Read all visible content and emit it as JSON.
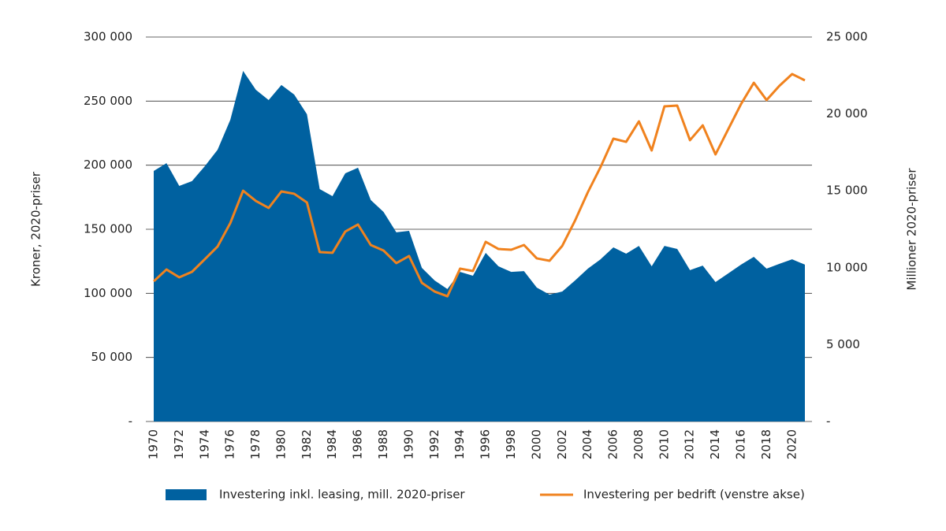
{
  "chart_data": {
    "type": "area",
    "ylabel": "Kroner, 2020-priser",
    "y2label": "Millioner 2020-priser",
    "x": [
      1970,
      1971,
      1972,
      1973,
      1974,
      1975,
      1976,
      1977,
      1978,
      1979,
      1980,
      1981,
      1982,
      1983,
      1984,
      1985,
      1986,
      1987,
      1988,
      1989,
      1990,
      1991,
      1992,
      1993,
      1994,
      1995,
      1996,
      1997,
      1998,
      1999,
      2000,
      2001,
      2002,
      2003,
      2004,
      2005,
      2006,
      2007,
      2008,
      2009,
      2010,
      2011,
      2012,
      2013,
      2014,
      2015,
      2016,
      2017,
      2018,
      2019,
      2020,
      2021
    ],
    "xlim": [
      1970,
      2021
    ],
    "xticks": [
      1970,
      1972,
      1974,
      1976,
      1978,
      1980,
      1982,
      1984,
      1986,
      1988,
      1990,
      1992,
      1994,
      1996,
      1998,
      2000,
      2002,
      2004,
      2006,
      2008,
      2010,
      2012,
      2014,
      2016,
      2018,
      2020
    ],
    "ylim": [
      0,
      300000
    ],
    "yticks": [
      {
        "value": 0,
        "label": "-"
      },
      {
        "value": 50000,
        "label": "50 000"
      },
      {
        "value": 100000,
        "label": "100 000"
      },
      {
        "value": 150000,
        "label": "150 000"
      },
      {
        "value": 200000,
        "label": "200 000"
      },
      {
        "value": 250000,
        "label": "250 000"
      },
      {
        "value": 300000,
        "label": "300 000"
      }
    ],
    "y2lim": [
      0,
      25000
    ],
    "y2ticks": [
      {
        "value": 0,
        "label": "-"
      },
      {
        "value": 5000,
        "label": "5 000"
      },
      {
        "value": 10000,
        "label": "10 000"
      },
      {
        "value": 15000,
        "label": "15 000"
      },
      {
        "value": 20000,
        "label": "20 000"
      },
      {
        "value": 25000,
        "label": "25 000"
      }
    ],
    "grid": true,
    "legend": "bottom",
    "series": [
      {
        "name": "Investering inkl. leasing, mill. 2020-priser",
        "type": "area",
        "axis": "y2",
        "color": "#0061a0",
        "values": [
          16290,
          16800,
          15320,
          15630,
          16600,
          17670,
          19620,
          22800,
          21570,
          20900,
          21880,
          21260,
          19980,
          15110,
          14650,
          16140,
          16500,
          14400,
          13630,
          12300,
          12400,
          9990,
          9170,
          8610,
          9730,
          9480,
          10960,
          10090,
          9730,
          9780,
          8710,
          8250,
          8450,
          9170,
          9940,
          10550,
          11320,
          10910,
          11420,
          10090,
          11420,
          11220,
          9840,
          10140,
          9070,
          9630,
          10200,
          10710,
          9940,
          10250,
          10550,
          10200
        ]
      },
      {
        "name": "Investering per bedrift (venstre akse)",
        "type": "line",
        "axis": "y",
        "color": "#f0821e",
        "values": [
          109400,
          118600,
          112500,
          116800,
          126600,
          136500,
          154900,
          180100,
          172100,
          166600,
          179500,
          177700,
          170900,
          132200,
          131600,
          148200,
          153700,
          137700,
          133400,
          123600,
          129100,
          108200,
          101400,
          97700,
          119300,
          117400,
          140200,
          134600,
          134000,
          137700,
          127300,
          125400,
          137100,
          156800,
          178900,
          198600,
          220700,
          218200,
          234200,
          211500,
          245900,
          246500,
          219500,
          231100,
          208400,
          228100,
          247700,
          264300,
          250800,
          261900,
          271100,
          266200
        ]
      }
    ]
  }
}
